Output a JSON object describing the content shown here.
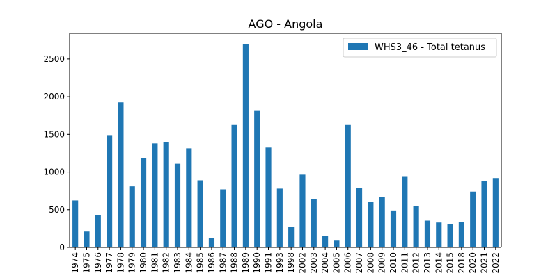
{
  "chart_data": {
    "type": "bar",
    "title": "AGO - Angola",
    "xlabel": "",
    "ylabel": "",
    "categories": [
      "1974",
      "1975",
      "1976",
      "1977",
      "1978",
      "1979",
      "1980",
      "1981",
      "1982",
      "1983",
      "1984",
      "1985",
      "1986",
      "1987",
      "1988",
      "1989",
      "1990",
      "1991",
      "1993",
      "1998",
      "2002",
      "2003",
      "2004",
      "2005",
      "2006",
      "2007",
      "2008",
      "2009",
      "2010",
      "2011",
      "2012",
      "2013",
      "2014",
      "2015",
      "2018",
      "2020",
      "2021",
      "2022"
    ],
    "series": [
      {
        "name": "WHS3_46 - Total tetanus",
        "values": [
          623,
          210,
          430,
          1490,
          1925,
          810,
          1185,
          1380,
          1395,
          1110,
          1315,
          890,
          125,
          770,
          1625,
          2700,
          1820,
          1325,
          780,
          275,
          965,
          640,
          155,
          90,
          1625,
          790,
          600,
          670,
          490,
          945,
          545,
          355,
          330,
          305,
          340,
          740,
          880,
          920
        ]
      }
    ],
    "ylim": [
      0,
      2840
    ],
    "yticks": [
      0,
      500,
      1000,
      1500,
      2000,
      2500
    ],
    "legend": "upper right",
    "grid": false,
    "colors": {
      "bar": "#1f77b4",
      "axis": "#000000",
      "legend_border": "#cccccc"
    }
  }
}
